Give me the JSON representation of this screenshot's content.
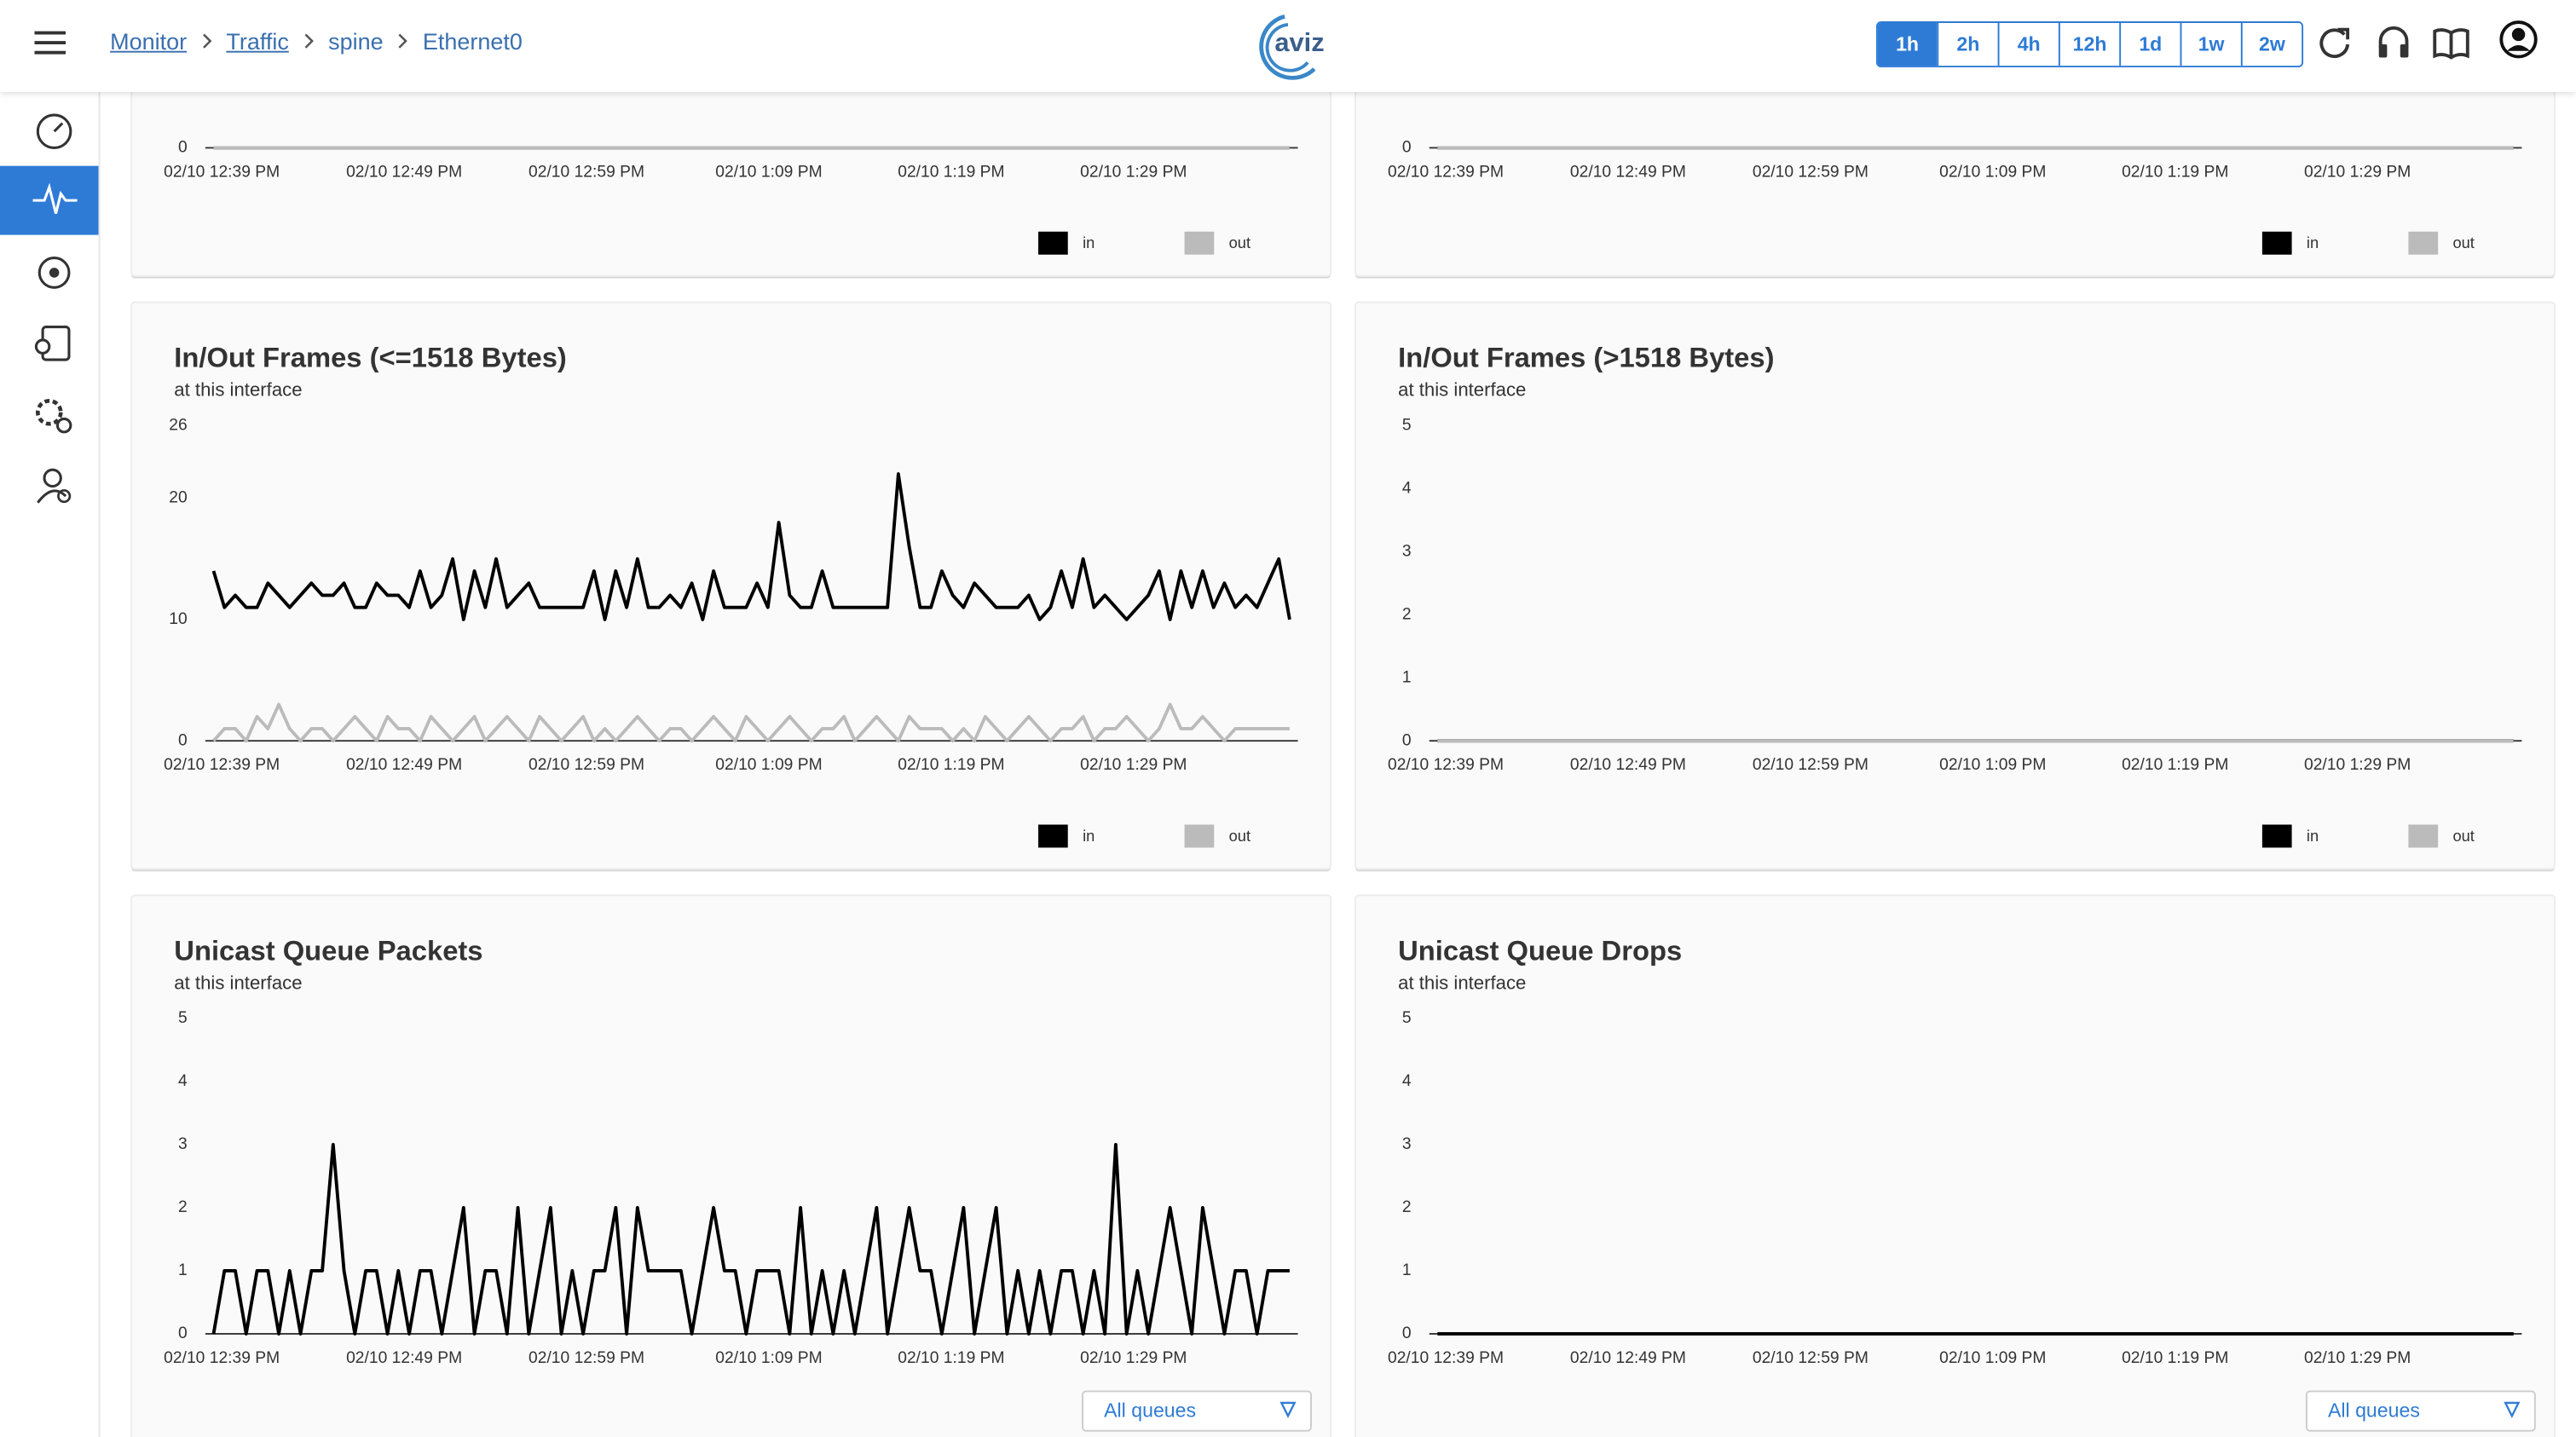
{
  "header": {
    "breadcrumb": [
      "Monitor",
      "Traffic",
      "spine",
      "Ethernet0"
    ],
    "logo": "aviz",
    "time_ranges": [
      "1h",
      "2h",
      "4h",
      "12h",
      "1d",
      "1w",
      "2w"
    ],
    "active_range": "1h"
  },
  "chart_data": [
    {
      "type": "line",
      "yticks": [
        0
      ],
      "xticks": [
        "02/10 12:39 PM",
        "02/10 12:49 PM",
        "02/10 12:59 PM",
        "02/10 1:09 PM",
        "02/10 1:19 PM",
        "02/10 1:29 PM"
      ],
      "series": [
        {
          "name": "in",
          "color": "#000000",
          "values": [
            0,
            0
          ]
        },
        {
          "name": "out",
          "color": "#bbbbbb",
          "values": [
            0,
            0
          ]
        }
      ]
    },
    {
      "type": "line",
      "yticks": [
        0
      ],
      "xticks": [
        "02/10 12:39 PM",
        "02/10 12:49 PM",
        "02/10 12:59 PM",
        "02/10 1:09 PM",
        "02/10 1:19 PM",
        "02/10 1:29 PM"
      ],
      "series": [
        {
          "name": "in",
          "color": "#000000",
          "values": [
            0,
            0
          ]
        },
        {
          "name": "out",
          "color": "#bbbbbb",
          "values": [
            0,
            0
          ]
        }
      ]
    },
    {
      "type": "line",
      "title": "In/Out Frames (<=1518 Bytes)",
      "subtitle": "at this interface",
      "ylim": [
        0,
        26
      ],
      "yticks": [
        0,
        10,
        20,
        26
      ],
      "xticks": [
        "02/10 12:39 PM",
        "02/10 12:49 PM",
        "02/10 12:59 PM",
        "02/10 1:09 PM",
        "02/10 1:19 PM",
        "02/10 1:29 PM"
      ],
      "series": [
        {
          "name": "in",
          "color": "#000000",
          "values": [
            14,
            11,
            12,
            11,
            11,
            13,
            12,
            11,
            12,
            13,
            12,
            12,
            13,
            11,
            11,
            13,
            12,
            12,
            11,
            14,
            11,
            12,
            15,
            10,
            14,
            11,
            15,
            11,
            12,
            13,
            11,
            11,
            11,
            11,
            11,
            14,
            10,
            14,
            11,
            15,
            11,
            11,
            12,
            11,
            13,
            10,
            14,
            11,
            11,
            11,
            13,
            11,
            18,
            12,
            11,
            11,
            14,
            11,
            11,
            11,
            11,
            11,
            11,
            22,
            16,
            11,
            11,
            14,
            12,
            11,
            13,
            12,
            11,
            11,
            11,
            12,
            10,
            11,
            14,
            11,
            15,
            11,
            12,
            11,
            10,
            11,
            12,
            14,
            10,
            14,
            11,
            14,
            11,
            13,
            11,
            12,
            11,
            13,
            15,
            10
          ]
        },
        {
          "name": "out",
          "color": "#bbbbbb",
          "values": [
            0,
            1,
            1,
            0,
            2,
            1,
            3,
            1,
            0,
            1,
            1,
            0,
            1,
            2,
            1,
            0,
            2,
            1,
            1,
            0,
            2,
            1,
            0,
            1,
            2,
            0,
            1,
            2,
            1,
            0,
            2,
            1,
            0,
            1,
            2,
            0,
            1,
            0,
            1,
            2,
            1,
            0,
            1,
            1,
            0,
            1,
            2,
            1,
            0,
            2,
            1,
            0,
            1,
            2,
            1,
            0,
            1,
            1,
            2,
            0,
            1,
            2,
            1,
            0,
            2,
            1,
            1,
            1,
            0,
            1,
            0,
            2,
            1,
            0,
            1,
            2,
            1,
            0,
            1,
            1,
            2,
            0,
            1,
            1,
            2,
            1,
            0,
            1,
            3,
            1,
            1,
            2,
            1,
            0,
            1,
            1,
            1,
            1,
            1,
            1
          ]
        }
      ]
    },
    {
      "type": "line",
      "title": "In/Out Frames (>1518 Bytes)",
      "subtitle": "at this interface",
      "ylim": [
        0,
        5
      ],
      "yticks": [
        0,
        1,
        2,
        3,
        4,
        5
      ],
      "xticks": [
        "02/10 12:39 PM",
        "02/10 12:49 PM",
        "02/10 12:59 PM",
        "02/10 1:09 PM",
        "02/10 1:19 PM",
        "02/10 1:29 PM"
      ],
      "series": [
        {
          "name": "in",
          "color": "#000000",
          "values": [
            0,
            0
          ]
        },
        {
          "name": "out",
          "color": "#bbbbbb",
          "values": [
            0,
            0
          ]
        }
      ]
    },
    {
      "type": "line",
      "title": "Unicast Queue Packets",
      "subtitle": "at this interface",
      "ylim": [
        0,
        5
      ],
      "yticks": [
        0,
        1,
        2,
        3,
        4,
        5
      ],
      "xticks": [
        "02/10 12:39 PM",
        "02/10 12:49 PM",
        "02/10 12:59 PM",
        "02/10 1:09 PM",
        "02/10 1:19 PM",
        "02/10 1:29 PM"
      ],
      "series": [
        {
          "color": "#000000",
          "values": [
            0,
            1,
            1,
            0,
            1,
            1,
            0,
            1,
            0,
            1,
            1,
            3,
            1,
            0,
            1,
            1,
            0,
            1,
            0,
            1,
            1,
            0,
            1,
            2,
            0,
            1,
            1,
            0,
            2,
            0,
            1,
            2,
            0,
            1,
            0,
            1,
            1,
            2,
            0,
            2,
            1,
            1,
            1,
            1,
            0,
            1,
            2,
            1,
            1,
            0,
            1,
            1,
            1,
            0,
            2,
            0,
            1,
            0,
            1,
            0,
            1,
            2,
            0,
            1,
            2,
            1,
            1,
            0,
            1,
            2,
            0,
            1,
            2,
            0,
            1,
            0,
            1,
            0,
            1,
            1,
            0,
            1,
            0,
            3,
            0,
            1,
            0,
            1,
            2,
            1,
            0,
            2,
            1,
            0,
            1,
            1,
            0,
            1,
            1,
            1
          ]
        }
      ],
      "filter": "All queues"
    },
    {
      "type": "line",
      "title": "Unicast Queue Drops",
      "subtitle": "at this interface",
      "ylim": [
        0,
        5
      ],
      "yticks": [
        0,
        1,
        2,
        3,
        4,
        5
      ],
      "xticks": [
        "02/10 12:39 PM",
        "02/10 12:49 PM",
        "02/10 12:59 PM",
        "02/10 1:09 PM",
        "02/10 1:19 PM",
        "02/10 1:29 PM"
      ],
      "series": [
        {
          "color": "#000000",
          "values": [
            0,
            0
          ]
        }
      ],
      "filter": "All queues"
    }
  ]
}
